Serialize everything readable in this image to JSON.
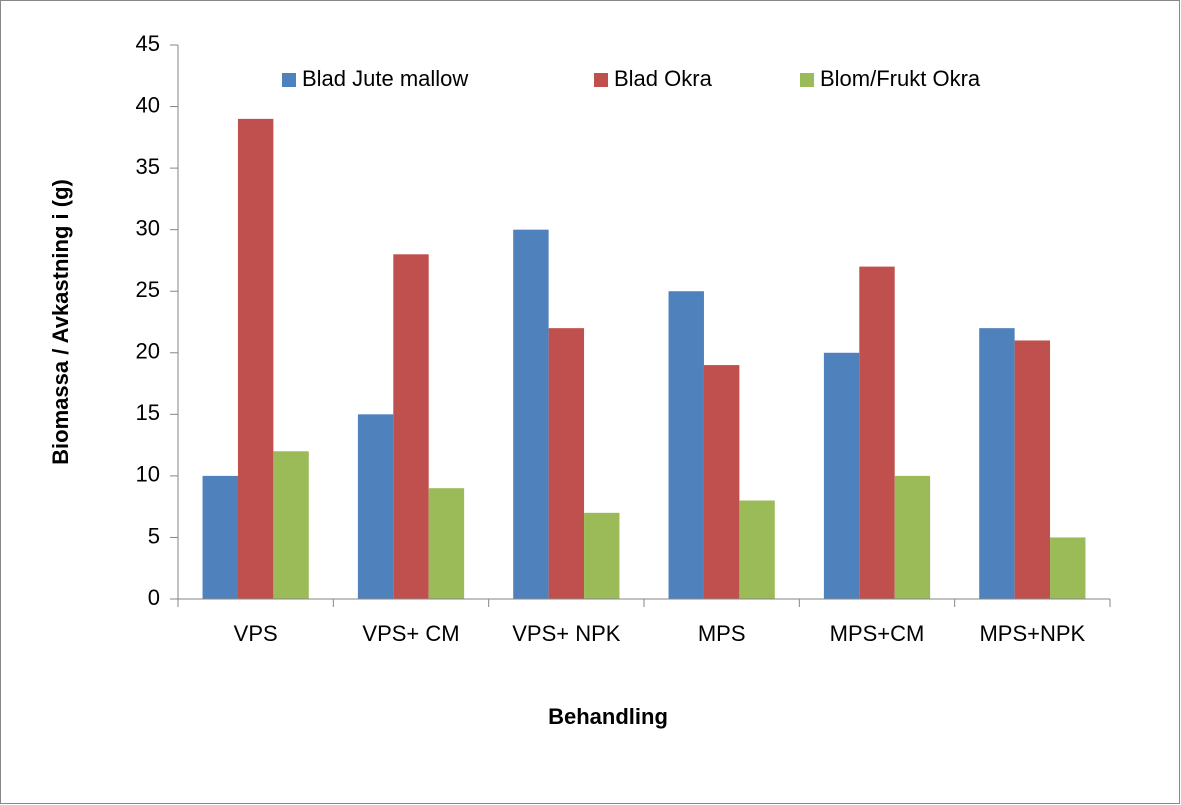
{
  "chart_data": {
    "type": "bar",
    "categories": [
      "VPS",
      "VPS+ CM",
      "VPS+ NPK",
      "MPS",
      "MPS+CM",
      "MPS+NPK"
    ],
    "series": [
      {
        "name": "Blad Jute mallow",
        "color": "#4f81bd",
        "values": [
          10,
          15,
          30,
          25,
          20,
          22
        ]
      },
      {
        "name": "Blad Okra",
        "color": "#c0504d",
        "values": [
          39,
          28,
          22,
          19,
          27,
          21
        ]
      },
      {
        "name": "Blom/Frukt Okra",
        "color": "#9bbb59",
        "values": [
          12,
          9,
          7,
          8,
          10,
          5
        ]
      }
    ],
    "x_label": "Behandling",
    "y_label": "Biomassa / Avkastning i (g)",
    "ylim": [
      0,
      45
    ],
    "yticks": [
      0,
      5,
      10,
      15,
      20,
      25,
      30,
      35,
      40,
      45
    ],
    "legend": "top",
    "grid": false
  }
}
